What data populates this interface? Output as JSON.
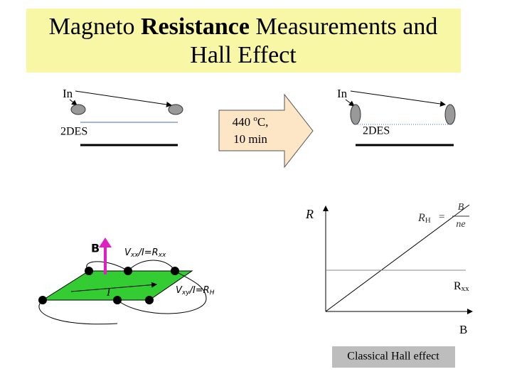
{
  "title": {
    "before": "Magneto ",
    "bold": "Resistance",
    "after": " Measurements and",
    "line2": "Hall Effect"
  },
  "anneal": {
    "before": {
      "contact": "In",
      "layer": "2DES"
    },
    "after": {
      "contact": "In",
      "layer": "2DES"
    },
    "arrow": {
      "temp": "440 ",
      "degree": "o",
      "temp_unit": "C,",
      "time": "10 min"
    }
  },
  "hall_bar": {
    "field": "B",
    "current": "I",
    "vxx": {
      "v": "V",
      "v_sub": "xx",
      "mid": "/I=R",
      "r_sub": "xx"
    },
    "vxy": {
      "v": "V",
      "v_sub": "xy",
      "mid": "/I=R",
      "r_sub": "H"
    }
  },
  "plot": {
    "y_label": "R",
    "x_label": "B",
    "rxx": {
      "r": "R",
      "sub": "xx"
    },
    "formula": {
      "r": "R",
      "sub": "H",
      "eq": "=",
      "num": "B",
      "den": "ne"
    },
    "caption": "Classical Hall effect"
  }
}
